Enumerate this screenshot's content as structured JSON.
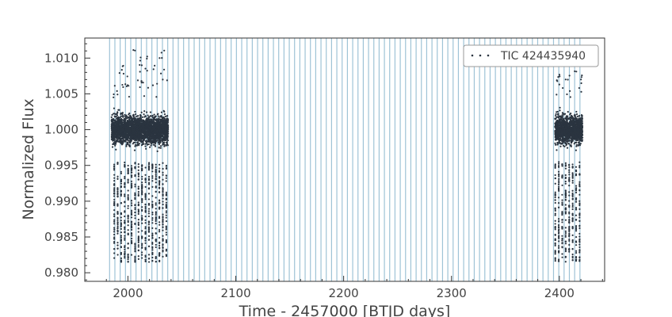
{
  "chart_data": {
    "type": "scatter",
    "title": "",
    "xlabel": "Time - 2457000 [BTJD days]",
    "ylabel": "Normalized Flux",
    "xlim": [
      1960,
      2442
    ],
    "ylim": [
      0.9788,
      1.0128
    ],
    "xticks": [
      2000,
      2100,
      2200,
      2300,
      2400
    ],
    "xtick_labels": [
      "2000",
      "2100",
      "2200",
      "2300",
      "2400"
    ],
    "yticks": [
      0.98,
      0.985,
      0.99,
      0.995,
      1.0,
      1.005,
      1.01
    ],
    "ytick_labels": [
      "0.980",
      "0.985",
      "0.990",
      "0.995",
      "1.000",
      "1.005",
      "1.010"
    ],
    "legend": {
      "label": "TIC 424435940",
      "position": "top-right"
    },
    "series": [
      {
        "name": "TIC 424435940",
        "color": "#2b3540",
        "segments": [
          {
            "x_start": 1984.8,
            "x_end": 2037.3,
            "baseline_flux": 1.0,
            "scatter_low": 0.9955,
            "scatter_high": 1.0045,
            "outlier_max": 1.0112
          },
          {
            "x_start": 2396.0,
            "x_end": 2421.5,
            "baseline_flux": 1.0,
            "scatter_low": 0.9955,
            "scatter_high": 1.0045,
            "outlier_max": 1.0082
          }
        ],
        "transits": {
          "period_days": 3.22,
          "first_epoch": 1987.3,
          "depth_min_flux": 0.9815
        }
      }
    ],
    "vertical_lines": {
      "color": "#9ec3d6",
      "start": 1983.0,
      "end": 2421.0,
      "spacing_days": 4.9
    },
    "grid": false
  }
}
